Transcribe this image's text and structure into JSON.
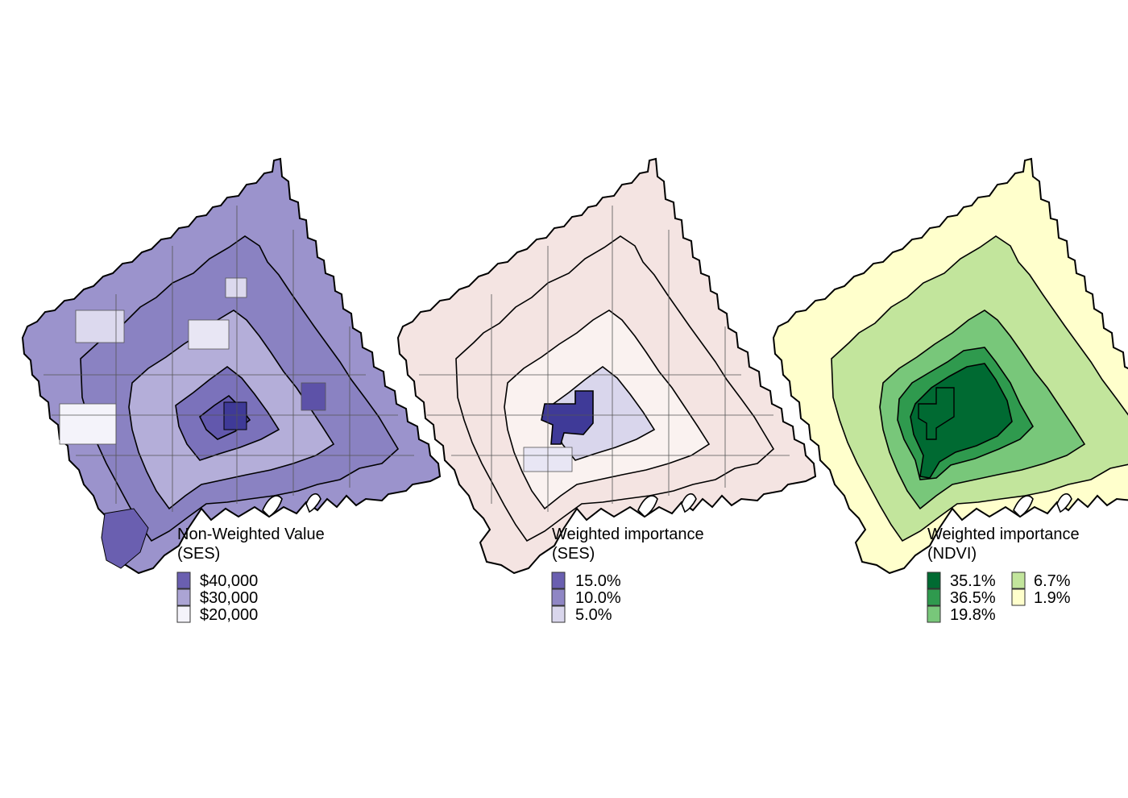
{
  "panels": [
    {
      "id": "non-weighted-ses",
      "title_line1": "Non-Weighted Value",
      "title_line2": "(SES)",
      "scheme": "purple",
      "legend": [
        {
          "label": "$40,000",
          "color": "#6a5fb0"
        },
        {
          "label": "$30,000",
          "color": "#aba4d4"
        },
        {
          "label": "$20,000",
          "color": "#f4f3fa"
        }
      ]
    },
    {
      "id": "weighted-ses",
      "title_line1": "Weighted importance",
      "title_line2": "(SES)",
      "scheme": "pink-purple",
      "legend": [
        {
          "label": "15.0%",
          "color": "#6a5fb0"
        },
        {
          "label": "10.0%",
          "color": "#8f86c4"
        },
        {
          "label": "5.0%",
          "color": "#d9d6ec"
        }
      ]
    },
    {
      "id": "weighted-ndvi",
      "title_line1": "Weighted importance",
      "title_line2": "(NDVI)",
      "scheme": "green",
      "legend": [
        {
          "label": "35.1%",
          "color": "#006a32"
        },
        {
          "label": "36.5%",
          "color": "#2f9a4e"
        },
        {
          "label": "19.8%",
          "color": "#78c77a"
        },
        {
          "label": "6.7%",
          "color": "#c2e59c"
        },
        {
          "label": "1.9%",
          "color": "#ffffcc"
        }
      ]
    }
  ],
  "colors": {
    "outline": "#000000",
    "inner_line": "#555555",
    "pink_base": "#f4e4e2",
    "pink_light": "#faf2f0",
    "deep_purple": "#3f3a98"
  }
}
